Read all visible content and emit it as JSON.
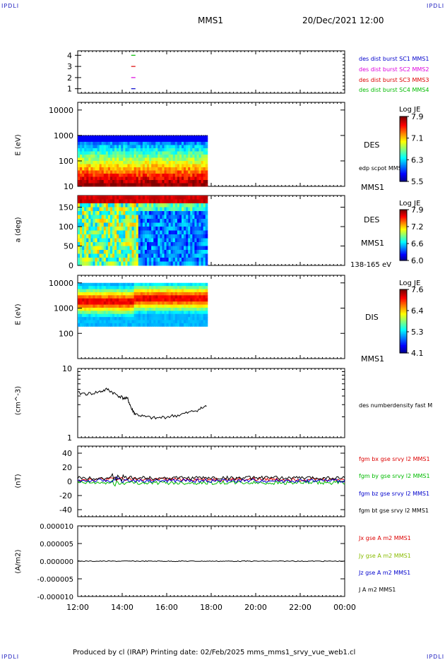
{
  "header": {
    "corner_label": "IPDLI",
    "spacecraft": "MMS1",
    "datetime": "20/Dec/2021 12:00"
  },
  "footer": {
    "text": "Produced by cl (IRAP)   Printing date: 02/Feb/2025   mms_mms1_srvy_vue_web1.cl"
  },
  "x_axis": {
    "ticks": [
      "12:00",
      "14:00",
      "16:00",
      "18:00",
      "20:00",
      "22:00",
      "00:00"
    ]
  },
  "colors": {
    "blue": "#0000cc",
    "magenta": "#dd00dd",
    "red": "#dd0000",
    "green": "#00bb00",
    "black": "#000000"
  },
  "chart_data": [
    {
      "type": "line",
      "panel": "burst-intervals",
      "yticks": [
        "1",
        "2",
        "3",
        "4"
      ],
      "series": [
        {
          "name": "des dist burst SC1 MMS1",
          "color": "#0000cc",
          "level": 1
        },
        {
          "name": "des dist burst SC2 MMS2",
          "color": "#dd00dd",
          "level": 2
        },
        {
          "name": "des dist burst SC3 MMS3",
          "color": "#dd0000",
          "level": 3
        },
        {
          "name": "des dist burst SC4 MMS4",
          "color": "#00bb00",
          "level": 4
        }
      ],
      "burst_time": "14:30"
    },
    {
      "type": "heatmap",
      "panel": "des-energy",
      "ylabel": "E (eV)",
      "yticks": [
        "10",
        "100",
        "1000",
        "10000"
      ],
      "ylim": [
        10,
        20000
      ],
      "yscale": "log",
      "data_range": [
        "12:00",
        "17:50"
      ],
      "label": "DES",
      "overlay_label": "edp scpot MMS1",
      "sc_label": "MMS1",
      "colorbar": {
        "title": "Log JE",
        "ticks": [
          "7.9",
          "7.1",
          "6.3",
          "5.5"
        ]
      }
    },
    {
      "type": "heatmap",
      "panel": "des-pitch-angle",
      "ylabel": "a (deg)",
      "yticks": [
        "0",
        "50",
        "100",
        "150"
      ],
      "ylim": [
        0,
        180
      ],
      "data_range": [
        "12:00",
        "17:50"
      ],
      "label": "DES",
      "sc_label": "MMS1",
      "energy_range": "138-165 eV",
      "colorbar": {
        "title": "Log JE",
        "ticks": [
          "7.9",
          "7.2",
          "6.6",
          "6.0"
        ]
      }
    },
    {
      "type": "heatmap",
      "panel": "dis-energy",
      "ylabel": "E (eV)",
      "yticks": [
        "100",
        "1000",
        "10000"
      ],
      "ylim": [
        10,
        20000
      ],
      "yscale": "log",
      "data_range": [
        "12:00",
        "17:50"
      ],
      "label": "DIS",
      "sc_label": "MMS1",
      "colorbar": {
        "title": "Log JE",
        "ticks": [
          "7.6",
          "6.4",
          "5.3",
          "4.1"
        ]
      }
    },
    {
      "type": "line",
      "panel": "density",
      "ylabel": "(cm^-3)",
      "yticks": [
        "1",
        "10"
      ],
      "ylim": [
        1,
        10
      ],
      "yscale": "log",
      "series": [
        {
          "name": "des numberdensity fast M",
          "color": "#000000",
          "x": [
            "12:00",
            "12:30",
            "13:00",
            "13:20",
            "13:40",
            "14:00",
            "14:15",
            "14:25",
            "14:35",
            "15:00",
            "15:30",
            "16:00",
            "16:30",
            "17:00",
            "17:30",
            "17:50"
          ],
          "values": [
            4.4,
            4.3,
            4.6,
            5.0,
            4.3,
            3.8,
            3.6,
            2.6,
            2.2,
            2.0,
            1.9,
            2.0,
            2.1,
            2.3,
            2.6,
            2.9
          ]
        }
      ]
    },
    {
      "type": "line",
      "panel": "fgm",
      "ylabel": "(nT)",
      "yticks": [
        "-40",
        "-20",
        "0",
        "20",
        "40"
      ],
      "ylim": [
        -50,
        50
      ],
      "series": [
        {
          "name": "fgm bx gse srvy l2 MMS1",
          "color": "#dd0000",
          "mean": 3
        },
        {
          "name": "fgm by gse srvy l2 MMS1",
          "color": "#00bb00",
          "mean": -2
        },
        {
          "name": "fgm bz gse srvy l2 MMS1",
          "color": "#0000cc",
          "mean": 1
        },
        {
          "name": "fgm bt gse srvy l2 MMS1",
          "color": "#000000",
          "mean": 5
        }
      ],
      "x_range": [
        "12:00",
        "00:00"
      ]
    },
    {
      "type": "line",
      "panel": "current",
      "ylabel": "(A/m2)",
      "yticks": [
        "0.000010",
        "0.000005",
        "0.000000",
        "-0.000005",
        "-0.000010"
      ],
      "ylim": [
        -1e-05,
        1e-05
      ],
      "series": [
        {
          "name": "Jx gse A m2 MMS1",
          "color": "#dd0000"
        },
        {
          "name": "Jy gse A m2 MMS1",
          "color": "#88bb00"
        },
        {
          "name": "Jz gse A m2 MMS1",
          "color": "#0000cc"
        },
        {
          "name": "J A m2 MMS1",
          "color": "#000000"
        }
      ],
      "x_range": [
        "12:00",
        "00:00"
      ]
    }
  ]
}
